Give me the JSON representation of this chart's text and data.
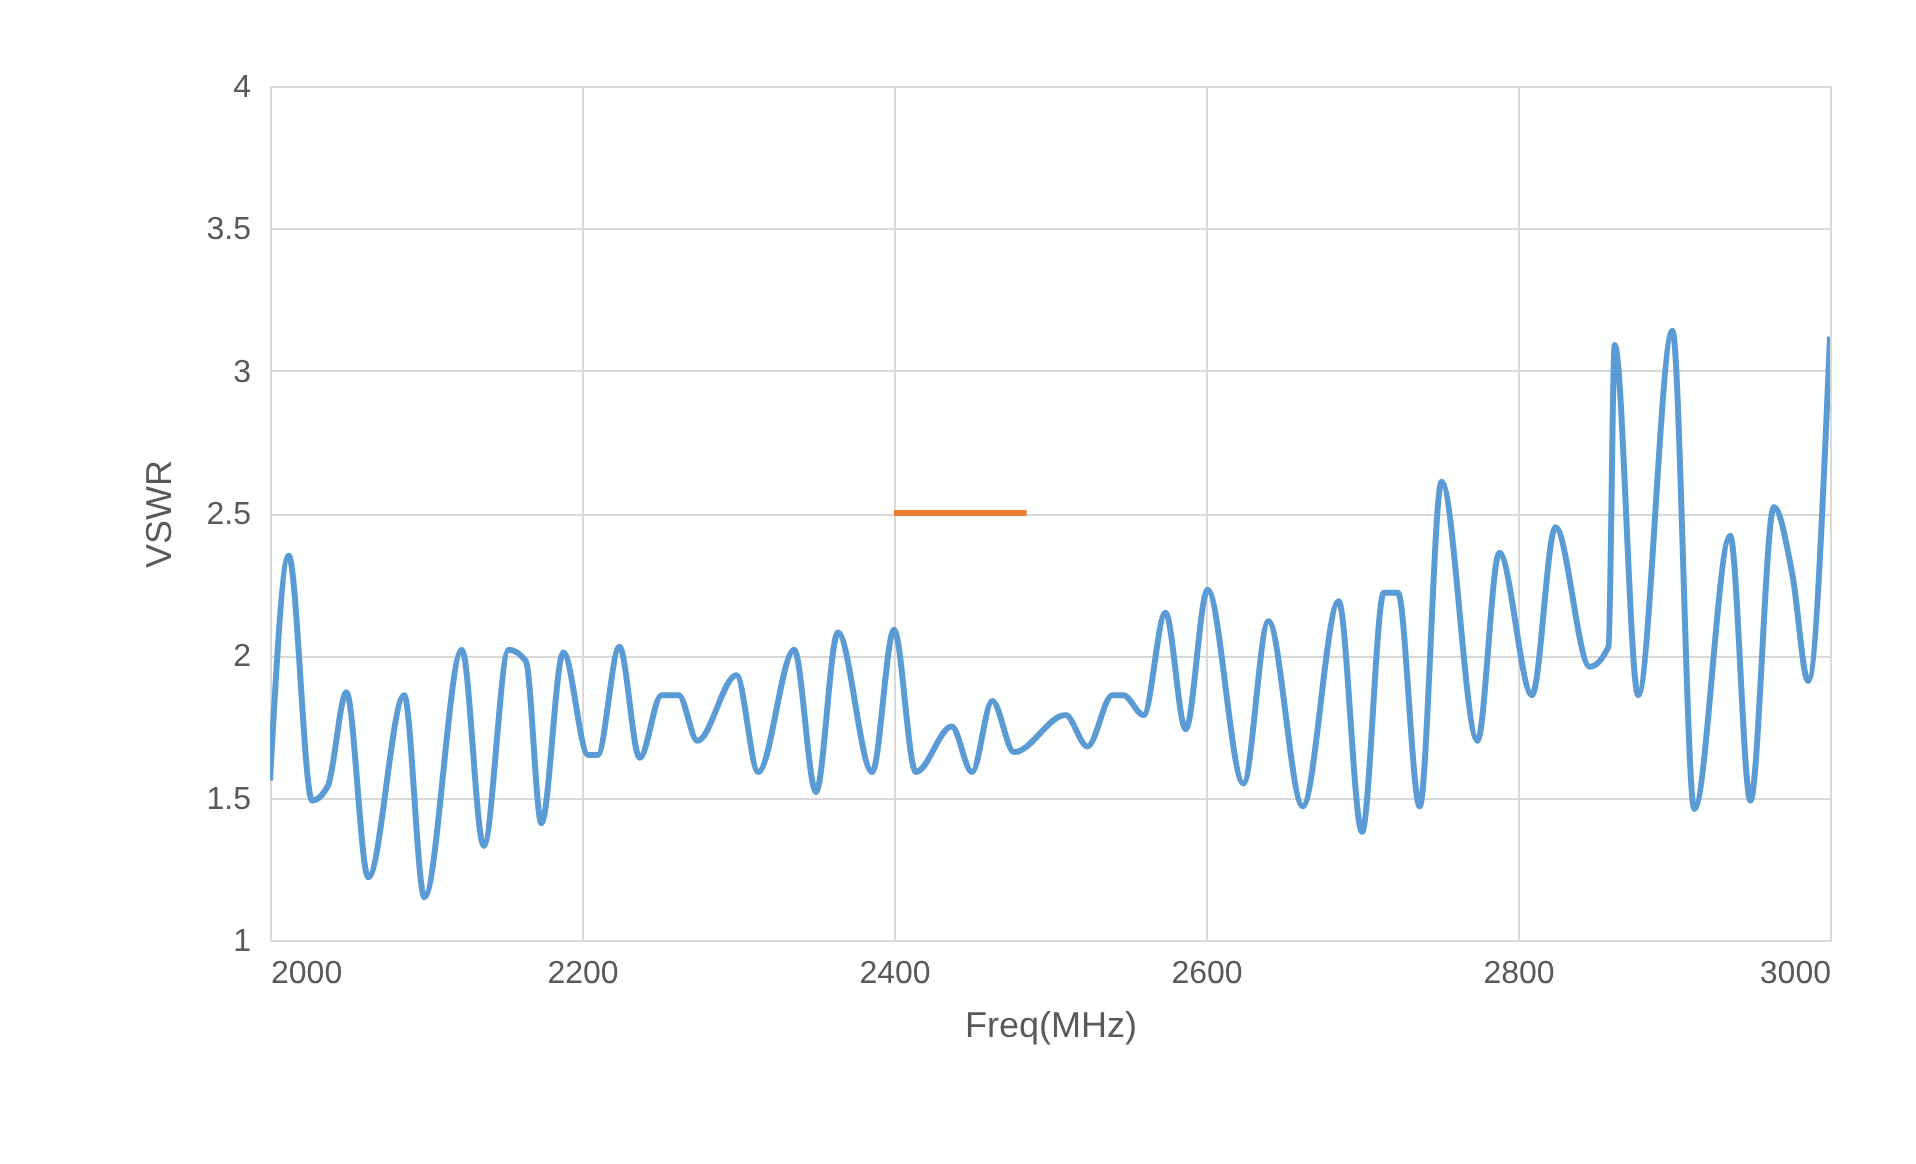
{
  "chart_data": {
    "type": "line",
    "xlabel": "Freq(MHz)",
    "ylabel": "VSWR",
    "xlim": [
      2000,
      3000
    ],
    "xticks": [
      2000,
      2200,
      2400,
      2600,
      2800,
      3000
    ],
    "ylim": [
      1,
      4
    ],
    "yticks": [
      1,
      1.5,
      2,
      2.5,
      3,
      3.5,
      4
    ],
    "grid": true,
    "marker": "none",
    "line_style": "solid",
    "series": [
      {
        "color": "#5b9bd5",
        "x": [
          2000,
          2012,
          2027,
          2037,
          2049,
          2063,
          2086,
          2099,
          2123,
          2137,
          2153,
          2164,
          2174,
          2188,
          2204,
          2210,
          2224,
          2237,
          2251,
          2262,
          2274,
          2299,
          2313,
          2336,
          2350,
          2364,
          2386,
          2400,
          2414,
          2437,
          2450,
          2463,
          2477,
          2510,
          2524,
          2540,
          2547,
          2560,
          2574,
          2587,
          2601,
          2624,
          2640,
          2662,
          2685,
          2700,
          2714,
          2723,
          2737,
          2751,
          2774,
          2788,
          2809,
          2824,
          2846,
          2858,
          2862,
          2877,
          2899,
          2913,
          2936,
          2949,
          2964,
          2976,
          2986,
          3000
        ],
        "values": [
          1.56,
          2.35,
          1.49,
          1.54,
          1.87,
          1.22,
          1.86,
          1.15,
          2.02,
          1.33,
          2.02,
          1.98,
          1.41,
          2.01,
          1.65,
          1.65,
          2.03,
          1.64,
          1.86,
          1.86,
          1.7,
          1.93,
          1.59,
          2.02,
          1.52,
          2.08,
          1.59,
          2.09,
          1.59,
          1.75,
          1.59,
          1.84,
          1.66,
          1.79,
          1.68,
          1.86,
          1.86,
          1.79,
          2.15,
          1.74,
          2.23,
          1.55,
          2.12,
          1.47,
          2.19,
          1.38,
          2.22,
          2.22,
          1.47,
          2.61,
          1.7,
          2.36,
          1.86,
          2.45,
          1.96,
          2.03,
          3.09,
          1.86,
          3.14,
          1.46,
          2.42,
          1.49,
          2.52,
          2.28,
          1.91,
          3.12
        ]
      },
      {
        "color": "#ed7d31",
        "x": [
          2400,
          2485
        ],
        "values": [
          2.5,
          2.5
        ]
      }
    ]
  }
}
